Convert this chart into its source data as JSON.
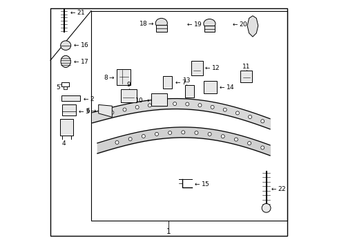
{
  "bg_color": "#ffffff",
  "line_color": "#000000",
  "text_color": "#000000",
  "figsize": [
    4.89,
    3.6
  ],
  "dpi": 100
}
